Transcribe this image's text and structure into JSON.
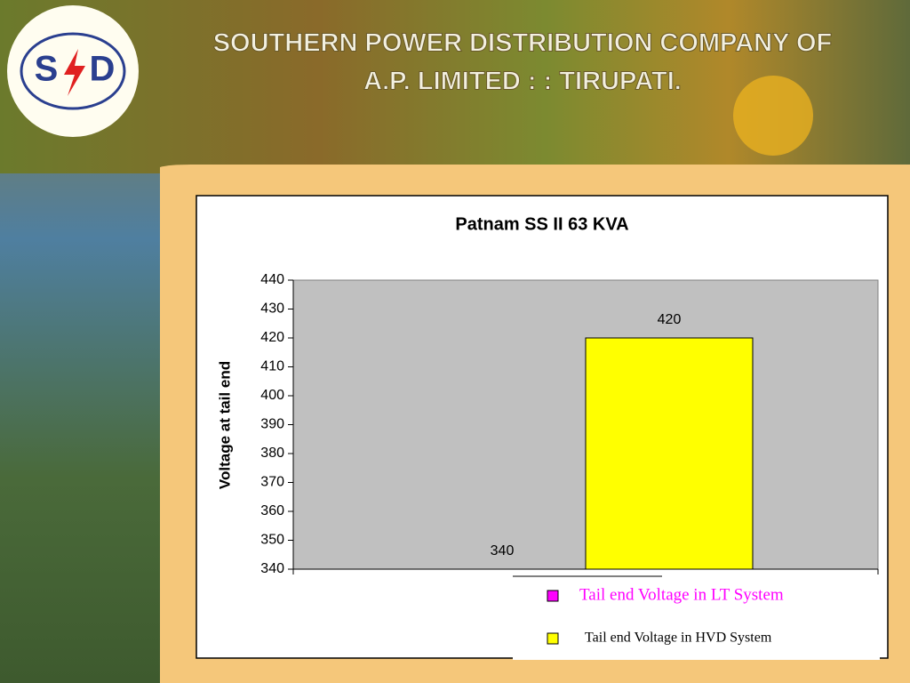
{
  "header": {
    "title_line1": "SOUTHERN POWER DISTRIBUTION COMPANY OF",
    "title_line2": "A.P. LIMITED : : TIRUPATI.",
    "logo_left": "S",
    "logo_right": "D"
  },
  "chart_data": {
    "type": "bar",
    "title": "Patnam SS II   63 KVA",
    "ylabel": "Voltage at tail end",
    "categories": [
      null
    ],
    "series": [
      {
        "name": "Tail end Voltage in LT System",
        "color": "#ff00ff",
        "values": [
          340
        ]
      },
      {
        "name": "Tail end Voltage in HVD System",
        "color": "#ffff00",
        "values": [
          420
        ]
      }
    ],
    "ylim": [
      340,
      440
    ],
    "yticks": [
      340,
      350,
      360,
      370,
      380,
      390,
      400,
      410,
      420,
      430,
      440
    ],
    "plot_background": "#c0c0c0",
    "legend": "bottom-right"
  }
}
